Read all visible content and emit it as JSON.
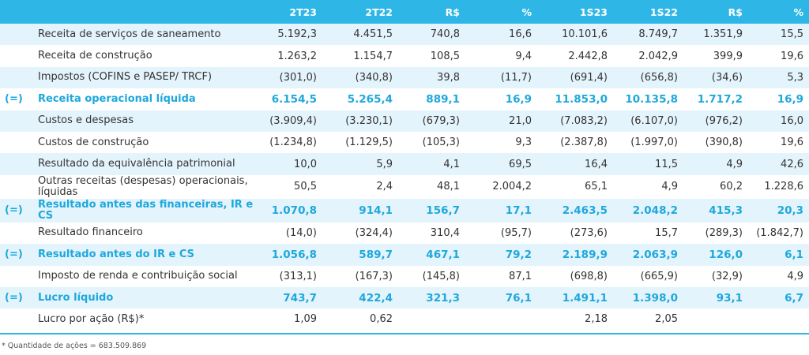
{
  "header": [
    "2T23",
    "2T22",
    "R$",
    "%",
    "1S23",
    "1S22",
    "R$",
    "%"
  ],
  "rows": [
    {
      "marker": "",
      "label": "Receita de serviços de saneamento",
      "values": [
        "5.192,3",
        "4.451,5",
        "740,8",
        "16,6",
        "10.101,6",
        "8.749,7",
        "1.351,9",
        "15,5"
      ]
    },
    {
      "marker": "",
      "label": "Receita de construção",
      "values": [
        "1.263,2",
        "1.154,7",
        "108,5",
        "9,4",
        "2.442,8",
        "2.042,9",
        "399,9",
        "19,6"
      ]
    },
    {
      "marker": "",
      "label": "Impostos (COFINS e PASEP/ TRCF)",
      "values": [
        "(301,0)",
        "(340,8)",
        "39,8",
        "(11,7)",
        "(691,4)",
        "(656,8)",
        "(34,6)",
        "5,3"
      ]
    },
    {
      "marker": "(=)",
      "label": "Receita operacional líquida",
      "values": [
        "6.154,5",
        "5.265,4",
        "889,1",
        "16,9",
        "11.853,0",
        "10.135,8",
        "1.717,2",
        "16,9"
      ]
    },
    {
      "marker": "",
      "label": "Custos e despesas",
      "values": [
        "(3.909,4)",
        "(3.230,1)",
        "(679,3)",
        "21,0",
        "(7.083,2)",
        "(6.107,0)",
        "(976,2)",
        "16,0"
      ]
    },
    {
      "marker": "",
      "label": "Custos de construção",
      "values": [
        "(1.234,8)",
        "(1.129,5)",
        "(105,3)",
        "9,3",
        "(2.387,8)",
        "(1.997,0)",
        "(390,8)",
        "19,6"
      ]
    },
    {
      "marker": "",
      "label": "Resultado da equivalência patrimonial",
      "values": [
        "10,0",
        "5,9",
        "4,1",
        "69,5",
        "16,4",
        "11,5",
        "4,9",
        "42,6"
      ]
    },
    {
      "marker": "",
      "label": "Outras receitas (despesas) operacionais, líquidas",
      "values": [
        "50,5",
        "2,4",
        "48,1",
        "2.004,2",
        "65,1",
        "4,9",
        "60,2",
        "1.228,6"
      ]
    },
    {
      "marker": "(=)",
      "label": "Resultado antes das financeiras, IR e CS",
      "values": [
        "1.070,8",
        "914,1",
        "156,7",
        "17,1",
        "2.463,5",
        "2.048,2",
        "415,3",
        "20,3"
      ]
    },
    {
      "marker": "",
      "label": "Resultado financeiro",
      "values": [
        "(14,0)",
        "(324,4)",
        "310,4",
        "(95,7)",
        "(273,6)",
        "15,7",
        "(289,3)",
        "(1.842,7)"
      ]
    },
    {
      "marker": "(=)",
      "label": "Resultado antes do IR e CS",
      "values": [
        "1.056,8",
        "589,7",
        "467,1",
        "79,2",
        "2.189,9",
        "2.063,9",
        "126,0",
        "6,1"
      ]
    },
    {
      "marker": "",
      "label": "Imposto de renda e contribuição social",
      "values": [
        "(313,1)",
        "(167,3)",
        "(145,8)",
        "87,1",
        "(698,8)",
        "(665,9)",
        "(32,9)",
        "4,9"
      ]
    },
    {
      "marker": "(=)",
      "label": "Lucro líquido",
      "values": [
        "743,7",
        "422,4",
        "321,3",
        "76,1",
        "1.491,1",
        "1.398,0",
        "93,1",
        "6,7"
      ]
    },
    {
      "marker": "",
      "label": "Lucro por ação (R$)*",
      "values": [
        "1,09",
        "0,62",
        "",
        "",
        "2,18",
        "2,05",
        "",
        ""
      ]
    }
  ],
  "footnote": "* Quantidade de ações = 683.509.869",
  "colors": {
    "accent": "#2eb6e6",
    "highlight_text": "#1ea8dc",
    "alt_row": "#e4f4fc"
  }
}
